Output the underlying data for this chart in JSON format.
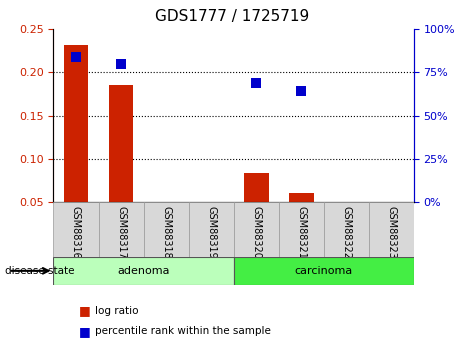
{
  "title": "GDS1777 / 1725719",
  "samples": [
    "GSM88316",
    "GSM88317",
    "GSM88318",
    "GSM88319",
    "GSM88320",
    "GSM88321",
    "GSM88322",
    "GSM88323"
  ],
  "log_ratio": [
    0.232,
    0.185,
    0.0,
    0.0,
    0.083,
    0.06,
    0.0,
    0.0
  ],
  "percentile_rank": [
    84,
    80,
    null,
    null,
    69,
    64,
    null,
    null
  ],
  "groups": [
    {
      "label": "adenoma",
      "indices": [
        0,
        1,
        2,
        3
      ],
      "color": "#bbffbb"
    },
    {
      "label": "carcinoma",
      "indices": [
        4,
        5,
        6,
        7
      ],
      "color": "#44ee44"
    }
  ],
  "ylim_left": [
    0.05,
    0.25
  ],
  "ylim_right": [
    0,
    100
  ],
  "yticks_left": [
    0.05,
    0.1,
    0.15,
    0.2,
    0.25
  ],
  "yticks_right": [
    0,
    25,
    50,
    75,
    100
  ],
  "bar_color": "#cc2200",
  "dot_color": "#0000cc",
  "bar_width": 0.55,
  "dot_size": 55,
  "legend_items": [
    "log ratio",
    "percentile rank within the sample"
  ],
  "legend_colors": [
    "#cc2200",
    "#0000cc"
  ],
  "tick_label_color_left": "#cc2200",
  "tick_label_color_right": "#0000cc",
  "tick_label_fontsize": 8,
  "title_fontsize": 11,
  "sample_box_color": "#d8d8d8",
  "sample_box_edge": "#999999"
}
